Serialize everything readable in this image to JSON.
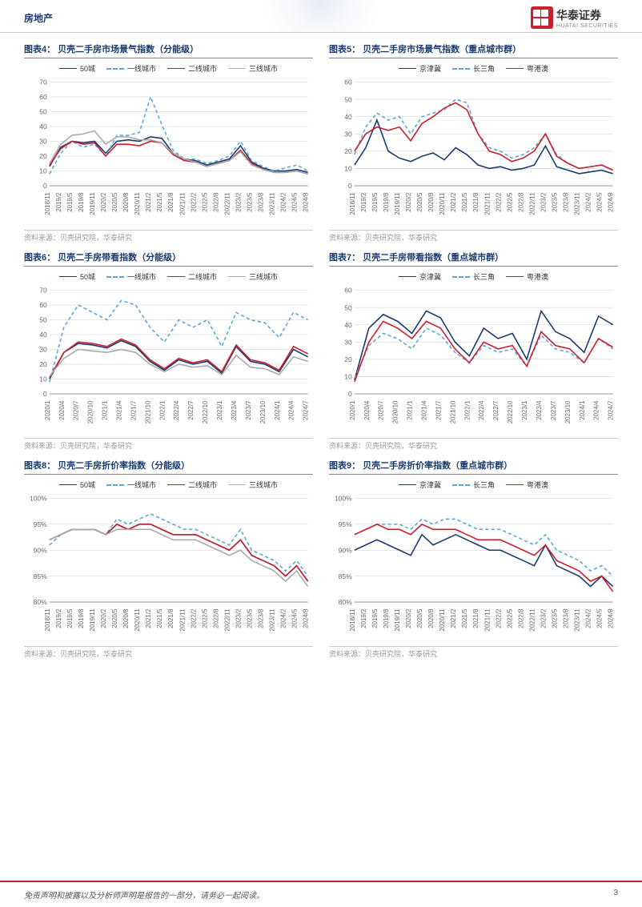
{
  "header": {
    "section": "房地产",
    "logo_text": "华泰证券",
    "logo_sub": "HUATAI SECURITIES"
  },
  "footer": {
    "disclaimer": "免责声明和披露以及分析师声明是报告的一部分，请务必一起阅读。",
    "page": "3"
  },
  "colors": {
    "series_navy": "#1a3a6e",
    "series_cyan_dashed": "#5aa8d6",
    "series_red": "#c8202f",
    "series_gray": "#aaaaaa",
    "grid": "#cccccc",
    "axis_text": "#666666",
    "title": "#1a3a6e",
    "source": "#999999"
  },
  "typography": {
    "title_fontsize": 11,
    "legend_fontsize": 9,
    "axis_fontsize": 8,
    "source_fontsize": 9
  },
  "source_text": "资料来源：贝壳研究院，华泰研究",
  "charts": [
    {
      "id": "chart4",
      "title": "图表4： 贝壳二手房市场景气指数（分能级）",
      "legend": [
        {
          "label": "50城",
          "color": "#1a3a6e",
          "dashed": false
        },
        {
          "label": "一线城市",
          "color": "#5aa8d6",
          "dashed": true
        },
        {
          "label": "二线城市",
          "color": "#c8202f",
          "dashed": false
        },
        {
          "label": "三线城市",
          "color": "#aaaaaa",
          "dashed": false
        }
      ],
      "ylim": [
        0,
        70
      ],
      "ytick_step": 10,
      "xlabels": [
        "2018/11",
        "2019/2",
        "2019/5",
        "2019/8",
        "2019/11",
        "2020/2",
        "2020/5",
        "2020/8",
        "2020/11",
        "2021/2",
        "2021/5",
        "2021/8",
        "2021/11",
        "2022/2",
        "2022/5",
        "2022/8",
        "2022/11",
        "2023/2",
        "2023/5",
        "2023/8",
        "2023/11",
        "2024/2",
        "2024/5",
        "2024/8"
      ],
      "series": {
        "50城": [
          13,
          26,
          30,
          29,
          30,
          22,
          30,
          31,
          30,
          33,
          32,
          22,
          18,
          17,
          14,
          16,
          18,
          27,
          16,
          12,
          10,
          10,
          11,
          9
        ],
        "一线城市": [
          8,
          22,
          30,
          26,
          28,
          20,
          34,
          34,
          36,
          60,
          41,
          24,
          18,
          18,
          15,
          17,
          20,
          30,
          17,
          13,
          10,
          12,
          14,
          10
        ],
        "二线城市": [
          14,
          25,
          30,
          28,
          29,
          20,
          28,
          28,
          27,
          30,
          29,
          21,
          17,
          16,
          13,
          15,
          17,
          24,
          15,
          11,
          9,
          9,
          10,
          8
        ],
        "三线城市": [
          15,
          28,
          34,
          35,
          37,
          28,
          33,
          33,
          31,
          31,
          29,
          22,
          18,
          16,
          13,
          15,
          17,
          23,
          14,
          11,
          9,
          9,
          10,
          8
        ]
      }
    },
    {
      "id": "chart5",
      "title": "图表5： 贝壳二手房市场景气指数（重点城市群）",
      "legend": [
        {
          "label": "京津冀",
          "color": "#1a3a6e",
          "dashed": false
        },
        {
          "label": "长三角",
          "color": "#5aa8d6",
          "dashed": true
        },
        {
          "label": "粤港澳",
          "color": "#c8202f",
          "dashed": false
        }
      ],
      "ylim": [
        0,
        60
      ],
      "ytick_step": 10,
      "xlabels": [
        "2018/11",
        "2019/2",
        "2019/5",
        "2019/8",
        "2019/11",
        "2020/2",
        "2020/5",
        "2020/8",
        "2020/11",
        "2021/2",
        "2021/5",
        "2021/8",
        "2021/11",
        "2022/2",
        "2022/5",
        "2022/8",
        "2022/11",
        "2023/2",
        "2023/5",
        "2023/8",
        "2023/11",
        "2024/2",
        "2024/5",
        "2024/8"
      ],
      "series": {
        "京津冀": [
          12,
          22,
          38,
          20,
          16,
          14,
          17,
          19,
          15,
          22,
          18,
          12,
          10,
          11,
          9,
          10,
          12,
          23,
          11,
          9,
          7,
          8,
          9,
          7
        ],
        "长三角": [
          18,
          34,
          42,
          38,
          40,
          30,
          40,
          42,
          44,
          50,
          48,
          30,
          22,
          20,
          16,
          18,
          22,
          30,
          18,
          13,
          10,
          11,
          12,
          9
        ],
        "粤港澳": [
          20,
          30,
          34,
          32,
          34,
          26,
          36,
          40,
          45,
          48,
          44,
          30,
          20,
          18,
          14,
          16,
          20,
          30,
          17,
          13,
          10,
          11,
          12,
          9
        ]
      }
    },
    {
      "id": "chart6",
      "title": "图表6： 贝壳二手房带看指数（分能级）",
      "legend": [
        {
          "label": "50城",
          "color": "#1a3a6e",
          "dashed": false
        },
        {
          "label": "一线城市",
          "color": "#5aa8d6",
          "dashed": true
        },
        {
          "label": "二线城市",
          "color": "#c8202f",
          "dashed": false
        },
        {
          "label": "三线城市",
          "color": "#aaaaaa",
          "dashed": false
        }
      ],
      "ylim": [
        0,
        70
      ],
      "ytick_step": 10,
      "xlabels": [
        "2020/1",
        "2020/4",
        "2020/7",
        "2020/10",
        "2021/1",
        "2021/4",
        "2021/7",
        "2021/10",
        "2022/1",
        "2022/4",
        "2022/7",
        "2022/10",
        "2023/1",
        "2023/4",
        "2023/7",
        "2023/10",
        "2024/1",
        "2024/4",
        "2024/7"
      ],
      "series": {
        "50城": [
          10,
          28,
          34,
          33,
          31,
          36,
          32,
          22,
          16,
          23,
          20,
          22,
          14,
          32,
          22,
          20,
          15,
          30,
          25
        ],
        "一线城市": [
          8,
          45,
          60,
          55,
          50,
          63,
          60,
          45,
          35,
          50,
          45,
          50,
          32,
          55,
          50,
          48,
          38,
          55,
          50
        ],
        "二线城市": [
          11,
          28,
          35,
          34,
          32,
          37,
          33,
          23,
          17,
          24,
          21,
          23,
          15,
          33,
          23,
          21,
          16,
          32,
          27
        ],
        "三线城市": [
          12,
          24,
          30,
          29,
          28,
          30,
          28,
          20,
          15,
          20,
          18,
          19,
          13,
          26,
          18,
          17,
          13,
          25,
          22
        ]
      }
    },
    {
      "id": "chart7",
      "title": "图表7： 贝壳二手房带看指数（重点城市群）",
      "legend": [
        {
          "label": "京津冀",
          "color": "#1a3a6e",
          "dashed": false
        },
        {
          "label": "长三角",
          "color": "#5aa8d6",
          "dashed": true
        },
        {
          "label": "粤港澳",
          "color": "#c8202f",
          "dashed": false
        }
      ],
      "ylim": [
        0,
        60
      ],
      "ytick_step": 10,
      "xlabels": [
        "2020/1",
        "2020/4",
        "2020/7",
        "2020/10",
        "2021/1",
        "2021/4",
        "2021/7",
        "2021/10",
        "2022/1",
        "2022/4",
        "2022/7",
        "2022/10",
        "2023/1",
        "2023/4",
        "2023/7",
        "2023/10",
        "2024/1",
        "2024/4",
        "2024/7"
      ],
      "series": {
        "京津冀": [
          8,
          38,
          46,
          42,
          35,
          48,
          44,
          30,
          22,
          38,
          32,
          35,
          20,
          48,
          36,
          32,
          24,
          45,
          40
        ],
        "长三角": [
          9,
          28,
          35,
          32,
          26,
          38,
          34,
          24,
          18,
          28,
          24,
          26,
          16,
          34,
          26,
          24,
          18,
          32,
          26
        ],
        "粤港澳": [
          7,
          30,
          42,
          38,
          32,
          42,
          38,
          26,
          18,
          30,
          26,
          28,
          16,
          36,
          28,
          26,
          18,
          32,
          27
        ]
      }
    },
    {
      "id": "chart8",
      "title": "图表8： 贝壳二手房折价率指数（分能级）",
      "legend": [
        {
          "label": "50城",
          "color": "#1a3a6e",
          "dashed": false
        },
        {
          "label": "一线城市",
          "color": "#5aa8d6",
          "dashed": true
        },
        {
          "label": "二线城市",
          "color": "#c8202f",
          "dashed": false
        },
        {
          "label": "三线城市",
          "color": "#aaaaaa",
          "dashed": false
        }
      ],
      "ylim": [
        80,
        100
      ],
      "ytick_step": 5,
      "ytick_format": "percent",
      "xlabels": [
        "2018/11",
        "2019/2",
        "2019/5",
        "2019/8",
        "2019/11",
        "2020/2",
        "2020/5",
        "2020/8",
        "2020/11",
        "2021/2",
        "2021/5",
        "2021/8",
        "2021/11",
        "2022/2",
        "2022/5",
        "2022/8",
        "2022/11",
        "2023/2",
        "2023/5",
        "2023/8",
        "2023/11",
        "2024/2",
        "2024/5",
        "2024/8"
      ],
      "series": {
        "50城": [
          92,
          93,
          94,
          94,
          94,
          93,
          95,
          94,
          95,
          95,
          94,
          93,
          93,
          93,
          92,
          91,
          90,
          92,
          89,
          88,
          87,
          85,
          87,
          84
        ],
        "一线城市": [
          91,
          93,
          94,
          94,
          94,
          93,
          96,
          95,
          96,
          97,
          96,
          95,
          94,
          94,
          93,
          92,
          91,
          94,
          90,
          89,
          88,
          86,
          88,
          85
        ],
        "二线城市": [
          92,
          93,
          94,
          94,
          94,
          93,
          95,
          94,
          95,
          95,
          94,
          93,
          93,
          93,
          92,
          91,
          90,
          92,
          89,
          88,
          87,
          85,
          87,
          84
        ],
        "三线城市": [
          92,
          93,
          94,
          94,
          94,
          93,
          94,
          94,
          94,
          94,
          93,
          92,
          92,
          92,
          91,
          90,
          89,
          90,
          88,
          87,
          86,
          84,
          86,
          83
        ]
      }
    },
    {
      "id": "chart9",
      "title": "图表9： 贝壳二手房折价率指数（重点城市群）",
      "legend": [
        {
          "label": "京津冀",
          "color": "#1a3a6e",
          "dashed": false
        },
        {
          "label": "长三角",
          "color": "#5aa8d6",
          "dashed": true
        },
        {
          "label": "粤港澳",
          "color": "#c8202f",
          "dashed": false
        }
      ],
      "ylim": [
        80,
        100
      ],
      "ytick_step": 5,
      "ytick_format": "percent",
      "xlabels": [
        "2018/11",
        "2019/2",
        "2019/5",
        "2019/8",
        "2019/11",
        "2020/2",
        "2020/5",
        "2020/8",
        "2020/11",
        "2021/2",
        "2021/5",
        "2021/8",
        "2021/11",
        "2022/2",
        "2022/5",
        "2022/8",
        "2022/11",
        "2023/2",
        "2023/5",
        "2023/8",
        "2023/11",
        "2024/2",
        "2024/5",
        "2024/8"
      ],
      "series": {
        "京津冀": [
          90,
          91,
          92,
          91,
          90,
          89,
          93,
          91,
          92,
          93,
          92,
          91,
          90,
          90,
          89,
          88,
          87,
          91,
          87,
          86,
          85,
          83,
          85,
          83
        ],
        "长三角": [
          93,
          94,
          95,
          95,
          95,
          94,
          96,
          95,
          96,
          96,
          95,
          94,
          94,
          94,
          93,
          92,
          91,
          93,
          90,
          89,
          88,
          86,
          87,
          85
        ],
        "粤港澳": [
          93,
          94,
          95,
          94,
          94,
          93,
          95,
          94,
          94,
          94,
          93,
          92,
          92,
          92,
          91,
          90,
          89,
          91,
          88,
          87,
          86,
          84,
          85,
          82
        ]
      }
    }
  ]
}
